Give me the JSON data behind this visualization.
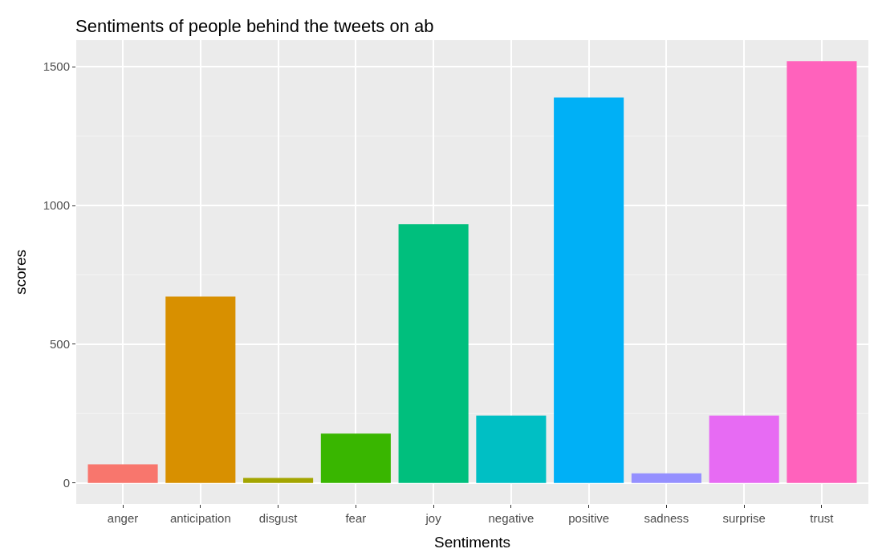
{
  "chart_data": {
    "type": "bar",
    "title": "Sentiments of people behind the tweets on ab",
    "xlabel": "Sentiments",
    "ylabel": "scores",
    "categories": [
      "anger",
      "anticipation",
      "disgust",
      "fear",
      "joy",
      "negative",
      "positive",
      "sadness",
      "surprise",
      "trust"
    ],
    "values": [
      67,
      672,
      18,
      178,
      933,
      243,
      1389,
      35,
      243,
      1520
    ],
    "colors": [
      "#f8766d",
      "#d89000",
      "#a3a500",
      "#39b600",
      "#00bf7d",
      "#00bfc4",
      "#00b0f6",
      "#9590ff",
      "#e76bf3",
      "#ff62bc"
    ],
    "ylim": [
      -76,
      1596
    ],
    "yticks": [
      0,
      500,
      1000,
      1500
    ],
    "grid": true,
    "legend": false
  }
}
